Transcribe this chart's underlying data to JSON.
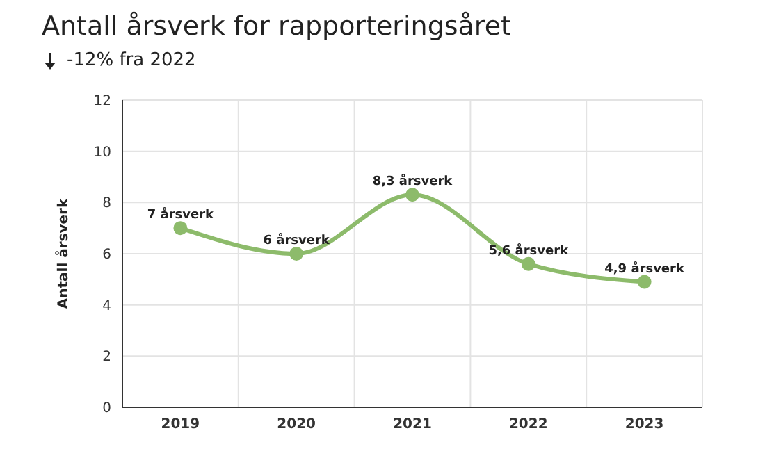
{
  "chart_data": {
    "type": "line",
    "title": "Antall årsverk for rapporteringsåret",
    "subtitle": "-12% fra 2022",
    "ylabel": "Antall årsverk",
    "categories": [
      "2019",
      "2020",
      "2021",
      "2022",
      "2023"
    ],
    "series": [
      {
        "color": "#8dbb6b",
        "values": [
          7,
          6,
          8.3,
          5.6,
          4.9
        ],
        "value_labels": [
          "7 årsverk",
          "6 årsverk",
          "8,3 årsverk",
          "5,6 årsverk",
          "4,9 årsverk"
        ]
      }
    ],
    "ylim": [
      0,
      12
    ],
    "yticks": [
      0,
      2,
      4,
      6,
      8,
      10,
      12
    ],
    "grid": true,
    "marker": "circle",
    "line_style": "solid"
  }
}
